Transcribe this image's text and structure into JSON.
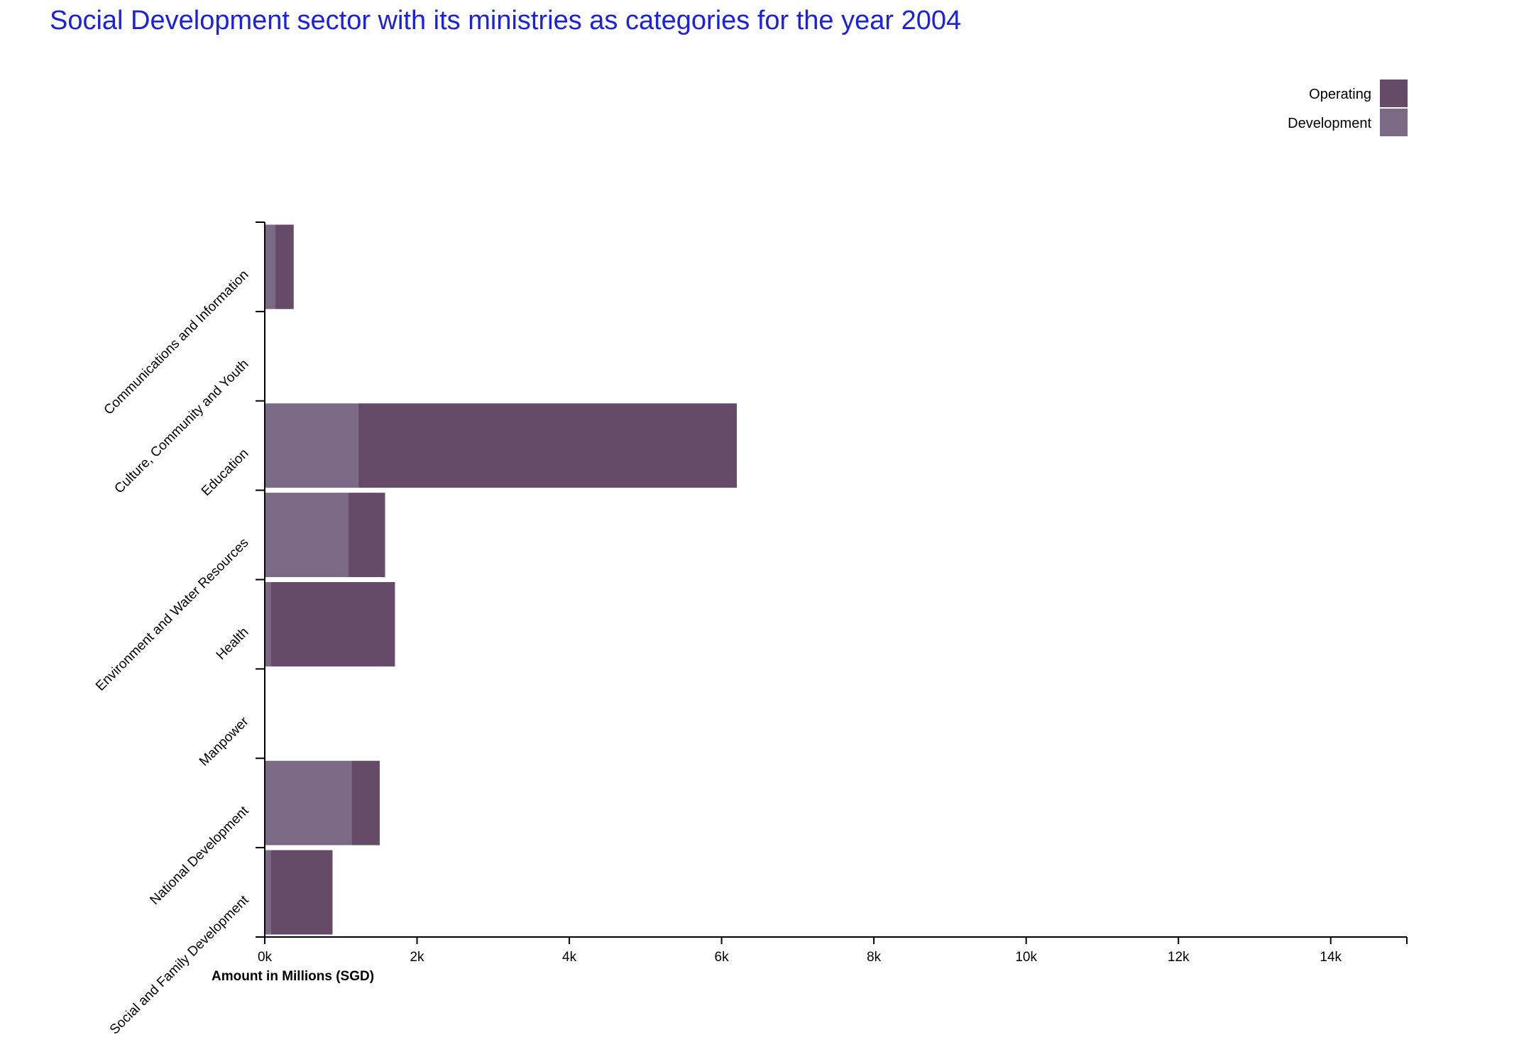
{
  "chart_data": {
    "type": "bar",
    "orientation": "horizontal",
    "stacked": true,
    "title": "Social Development sector with its ministries as categories for the year 2004",
    "xlabel": "Amount in Millions (SGD)",
    "ylabel": "",
    "xlim": [
      0,
      15000
    ],
    "x_ticks": [
      0,
      2000,
      4000,
      6000,
      8000,
      10000,
      12000,
      14000
    ],
    "x_tick_labels": [
      "0k",
      "2k",
      "4k",
      "6k",
      "8k",
      "10k",
      "12k",
      "14k"
    ],
    "categories": [
      "Communications and Information",
      "Culture, Community and Youth",
      "Education",
      "Environment and Water Resources",
      "Health",
      "Manpower",
      "National Development",
      "Social and Family Development"
    ],
    "series": [
      {
        "name": "Development",
        "color": "#7b6a85",
        "values": [
          140,
          0,
          1230,
          1100,
          80,
          0,
          1140,
          80
        ]
      },
      {
        "name": "Operating",
        "color": "#664b68",
        "values": [
          240,
          0,
          4970,
          480,
          1630,
          0,
          370,
          810
        ]
      }
    ],
    "legend": {
      "position": "top-right",
      "order": [
        "Operating",
        "Development"
      ]
    },
    "grid": false
  }
}
